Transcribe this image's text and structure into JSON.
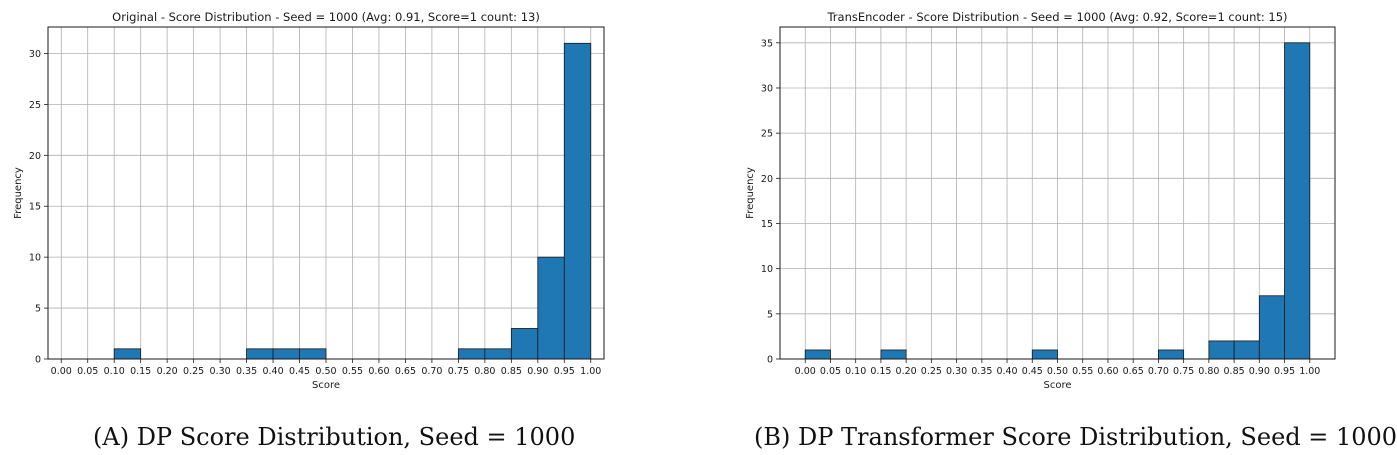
{
  "chart_data": [
    {
      "type": "bar",
      "title": "Original - Score Distribution - Seed = 1000 (Avg: 0.91, Score=1 count: 13)",
      "xlabel": "Score",
      "ylabel": "Frequency",
      "xlim": [
        -0.025,
        1.025
      ],
      "ylim": [
        0,
        32.6
      ],
      "xticks": [
        "0.00",
        "0.05",
        "0.10",
        "0.15",
        "0.20",
        "0.25",
        "0.30",
        "0.35",
        "0.40",
        "0.45",
        "0.50",
        "0.55",
        "0.60",
        "0.65",
        "0.70",
        "0.75",
        "0.80",
        "0.85",
        "0.90",
        "0.95",
        "1.00"
      ],
      "yticks": [
        0,
        5,
        10,
        15,
        20,
        25,
        30
      ],
      "bin_width": 0.05,
      "bins": [
        {
          "start": 0.1,
          "count": 1
        },
        {
          "start": 0.35,
          "count": 1
        },
        {
          "start": 0.4,
          "count": 1
        },
        {
          "start": 0.45,
          "count": 1
        },
        {
          "start": 0.75,
          "count": 1
        },
        {
          "start": 0.8,
          "count": 1
        },
        {
          "start": 0.85,
          "count": 3
        },
        {
          "start": 0.9,
          "count": 10
        },
        {
          "start": 0.95,
          "count": 31
        }
      ],
      "bar_color": "#1f77b4",
      "grid": true
    },
    {
      "type": "bar",
      "title": "TransEncoder - Score Distribution - Seed = 1000 (Avg: 0.92, Score=1 count: 15)",
      "xlabel": "Score",
      "ylabel": "Frequency",
      "xlim": [
        -0.05,
        1.05
      ],
      "ylim": [
        0,
        36.75
      ],
      "xticks": [
        "0.00",
        "0.05",
        "0.10",
        "0.15",
        "0.20",
        "0.25",
        "0.30",
        "0.35",
        "0.40",
        "0.45",
        "0.50",
        "0.55",
        "0.60",
        "0.65",
        "0.70",
        "0.75",
        "0.80",
        "0.85",
        "0.90",
        "0.95",
        "1.00"
      ],
      "yticks": [
        0,
        5,
        10,
        15,
        20,
        25,
        30,
        35
      ],
      "bin_width": 0.05,
      "bins": [
        {
          "start": 0.0,
          "count": 1
        },
        {
          "start": 0.15,
          "count": 1
        },
        {
          "start": 0.45,
          "count": 1
        },
        {
          "start": 0.7,
          "count": 1
        },
        {
          "start": 0.8,
          "count": 2
        },
        {
          "start": 0.85,
          "count": 2
        },
        {
          "start": 0.9,
          "count": 7
        },
        {
          "start": 0.95,
          "count": 35
        }
      ],
      "bar_color": "#1f77b4",
      "grid": true
    }
  ],
  "captions": {
    "a_label": "(A)",
    "a_text": " DP Score Distribution, Seed = 1000",
    "b_label": "(B)",
    "b_text": " DP Transformer Score Distribution, Seed = 1000"
  }
}
